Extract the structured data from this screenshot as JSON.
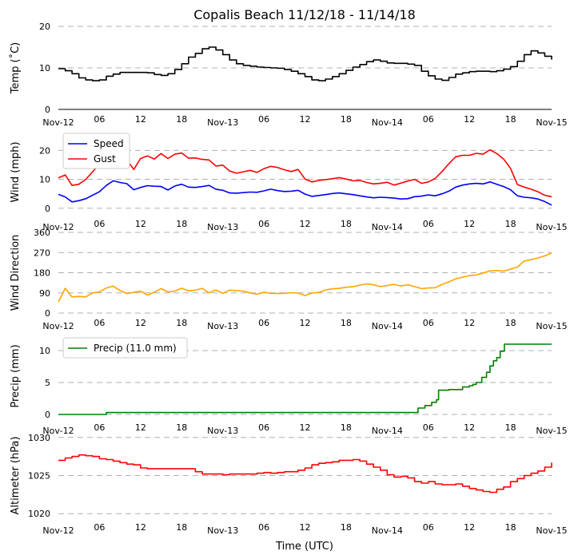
{
  "chart_data": {
    "type": "line",
    "title": "Copalis Beach 11/12/18 - 11/14/18",
    "xlabel": "Time (UTC)",
    "x_range_hours": [
      0,
      72
    ],
    "x_ticks": [
      {
        "h": 0,
        "label": "Nov-12"
      },
      {
        "h": 6,
        "label": "06"
      },
      {
        "h": 12,
        "label": "12"
      },
      {
        "h": 18,
        "label": "18"
      },
      {
        "h": 24,
        "label": "Nov-13"
      },
      {
        "h": 30,
        "label": "06"
      },
      {
        "h": 36,
        "label": "12"
      },
      {
        "h": 42,
        "label": "18"
      },
      {
        "h": 48,
        "label": "Nov-14"
      },
      {
        "h": 54,
        "label": "06"
      },
      {
        "h": 60,
        "label": "12"
      },
      {
        "h": 66,
        "label": "18"
      },
      {
        "h": 72,
        "label": "Nov-15"
      }
    ],
    "panels": [
      {
        "id": "temp",
        "ylabel": "Temp ($^\\circ$C)",
        "ylabel_display": "Temp (˚C)",
        "ylim": [
          0,
          20
        ],
        "yticks": [
          0,
          10,
          20
        ],
        "series": [
          {
            "name": "Temp",
            "color": "#000000",
            "step": true,
            "x": [
              0,
              1,
              2,
              3,
              4,
              5,
              6,
              7,
              8,
              9,
              10,
              11,
              12,
              13,
              14,
              15,
              16,
              17,
              18,
              19,
              20,
              21,
              22,
              23,
              24,
              25,
              26,
              27,
              28,
              29,
              30,
              31,
              32,
              33,
              34,
              35,
              36,
              37,
              38,
              39,
              40,
              41,
              42,
              43,
              44,
              45,
              46,
              47,
              48,
              49,
              50,
              51,
              52,
              53,
              54,
              55,
              56,
              57,
              58,
              59,
              60,
              61,
              62,
              63,
              64,
              65,
              66,
              67,
              68,
              69,
              70,
              71,
              72
            ],
            "y": [
              9.8,
              9.3,
              8.6,
              7.6,
              7.1,
              6.9,
              7.1,
              8.0,
              8.5,
              8.9,
              8.9,
              8.9,
              8.9,
              8.8,
              8.4,
              8.2,
              8.6,
              9.6,
              11.0,
              12.6,
              13.5,
              14.6,
              15.0,
              14.3,
              13.2,
              11.9,
              11.0,
              10.6,
              10.4,
              10.2,
              10.1,
              10.0,
              9.9,
              9.6,
              9.2,
              8.6,
              7.9,
              7.1,
              6.9,
              7.3,
              7.9,
              8.6,
              9.4,
              10.2,
              10.8,
              11.5,
              11.9,
              11.6,
              11.2,
              11.1,
              11.1,
              10.9,
              10.6,
              9.2,
              8.1,
              7.3,
              7.0,
              7.7,
              8.5,
              8.8,
              9.1,
              9.2,
              9.2,
              9.1,
              9.3,
              9.7,
              10.3,
              11.6,
              13.2,
              14.1,
              13.6,
              12.8,
              12.0
            ]
          }
        ]
      },
      {
        "id": "wind",
        "ylabel": "Wind (mph)",
        "ylim": [
          -2,
          27
        ],
        "yticks": [
          0,
          10,
          20
        ],
        "legend": "top-left",
        "series": [
          {
            "name": "Speed",
            "color": "#0000ff",
            "x": [
              0,
              1,
              2,
              3,
              4,
              5,
              6,
              7,
              8,
              9,
              10,
              11,
              12,
              13,
              14,
              15,
              16,
              17,
              18,
              19,
              20,
              21,
              22,
              23,
              24,
              25,
              26,
              27,
              28,
              29,
              30,
              31,
              32,
              33,
              34,
              35,
              36,
              37,
              38,
              39,
              40,
              41,
              42,
              43,
              44,
              45,
              46,
              47,
              48,
              49,
              50,
              51,
              52,
              53,
              54,
              55,
              56,
              57,
              58,
              59,
              60,
              61,
              62,
              63,
              64,
              65,
              66,
              67,
              68,
              69,
              70,
              71,
              72
            ],
            "y": [
              4.8,
              3.9,
              2.2,
              2.6,
              3.3,
              4.5,
              5.7,
              7.9,
              9.5,
              8.9,
              8.5,
              6.4,
              7.2,
              7.8,
              7.6,
              7.5,
              6.3,
              7.7,
              8.3,
              7.3,
              7.2,
              7.5,
              7.9,
              6.6,
              6.2,
              5.3,
              5.2,
              5.4,
              5.6,
              5.5,
              6.0,
              6.6,
              6.1,
              5.8,
              5.9,
              6.2,
              4.9,
              4.1,
              4.4,
              4.7,
              5.1,
              5.3,
              5.0,
              4.7,
              4.3,
              3.9,
              3.6,
              3.8,
              3.7,
              3.5,
              3.2,
              3.3,
              4.0,
              4.2,
              4.6,
              4.3,
              5.0,
              5.9,
              7.3,
              8.0,
              8.4,
              8.6,
              8.4,
              9.1,
              8.3,
              7.5,
              6.4,
              4.3,
              3.8,
              3.6,
              3.2,
              2.3,
              1.1
            ]
          },
          {
            "name": "Gust",
            "color": "#ff0000",
            "x": [
              0,
              1,
              2,
              3,
              4,
              5,
              6,
              7,
              8,
              9,
              10,
              11,
              12,
              13,
              14,
              15,
              16,
              17,
              18,
              19,
              20,
              21,
              22,
              23,
              24,
              25,
              26,
              27,
              28,
              29,
              30,
              31,
              32,
              33,
              34,
              35,
              36,
              37,
              38,
              39,
              40,
              41,
              42,
              43,
              44,
              45,
              46,
              47,
              48,
              49,
              50,
              51,
              52,
              53,
              54,
              55,
              56,
              57,
              58,
              59,
              60,
              61,
              62,
              63,
              64,
              65,
              66,
              67,
              68,
              69,
              70,
              71,
              72
            ],
            "y": [
              10.5,
              11.5,
              7.9,
              8.3,
              10.0,
              12.6,
              15.2,
              17.9,
              20.4,
              18.7,
              16.7,
              13.4,
              17.2,
              18.1,
              17.0,
              18.9,
              17.2,
              18.7,
              19.1,
              17.3,
              17.4,
              16.9,
              16.7,
              14.6,
              14.9,
              12.9,
              12.1,
              12.6,
              13.1,
              12.4,
              13.7,
              14.5,
              14.1,
              13.3,
              12.7,
              13.4,
              10.1,
              9.1,
              9.6,
              9.9,
              10.2,
              10.6,
              10.1,
              9.5,
              9.6,
              8.9,
              8.4,
              8.6,
              9.0,
              8.0,
              8.7,
              9.4,
              10.0,
              8.6,
              9.1,
              10.3,
              12.7,
              15.4,
              17.8,
              18.3,
              18.3,
              19.0,
              18.7,
              20.2,
              18.9,
              17.0,
              13.8,
              8.2,
              7.3,
              6.6,
              5.7,
              4.5,
              4.0
            ]
          }
        ]
      },
      {
        "id": "dir",
        "ylabel": "Wind Direction",
        "ylim": [
          0,
          360
        ],
        "yticks": [
          0,
          90,
          180,
          270,
          360
        ],
        "series": [
          {
            "name": "Direction",
            "color": "#ffa500",
            "x": [
              0,
              1,
              2,
              3,
              4,
              5,
              6,
              7,
              8,
              9,
              10,
              11,
              12,
              13,
              14,
              15,
              16,
              17,
              18,
              19,
              20,
              21,
              22,
              23,
              24,
              25,
              26,
              27,
              28,
              29,
              30,
              31,
              32,
              33,
              34,
              35,
              36,
              37,
              38,
              39,
              40,
              41,
              42,
              43,
              44,
              45,
              46,
              47,
              48,
              49,
              50,
              51,
              52,
              53,
              54,
              55,
              56,
              57,
              58,
              59,
              60,
              61,
              62,
              63,
              64,
              65,
              66,
              67,
              68,
              69,
              70,
              71,
              72
            ],
            "y": [
              50,
              110,
              72,
              74,
              72,
              90,
              94,
              112,
              120,
              100,
              87,
              92,
              98,
              80,
              93,
              109,
              94,
              98,
              111,
              99,
              102,
              110,
              90,
              103,
              88,
              102,
              100,
              98,
              90,
              84,
              93,
              88,
              87,
              88,
              91,
              89,
              78,
              89,
              92,
              103,
              108,
              110,
              115,
              118,
              124,
              130,
              126,
              118,
              123,
              128,
              121,
              126,
              118,
              109,
              112,
              113,
              128,
              139,
              153,
              160,
              167,
              170,
              179,
              188,
              190,
              187,
              196,
              205,
              232,
              238,
              246,
              255,
              268
            ]
          }
        ]
      },
      {
        "id": "precip",
        "ylabel": "Precip (mm)",
        "ylim": [
          -0.5,
          12.5
        ],
        "yticks": [
          0,
          5,
          10
        ],
        "legend": "top-left",
        "series": [
          {
            "name": "Precip (11.0 mm)",
            "color": "#008000",
            "step": true,
            "x": [
              0,
              6.8,
              7,
              51.5,
              52.5,
              53.5,
              54.5,
              55.2,
              55.5,
              56.5,
              57,
              58,
              59,
              60,
              60.5,
              61,
              61.8,
              62.5,
              63,
              63.5,
              64,
              64.5,
              65.1,
              66,
              72
            ],
            "y": [
              0,
              0,
              0.3,
              0.3,
              1.0,
              1.4,
              1.9,
              2.3,
              3.8,
              3.8,
              3.9,
              3.9,
              4.3,
              4.5,
              4.7,
              5.0,
              5.8,
              6.6,
              7.6,
              8.4,
              8.9,
              9.9,
              11.0,
              11.0,
              11.0
            ]
          }
        ]
      },
      {
        "id": "alt",
        "ylabel": "Altimeter (hPa)",
        "ylim": [
          1019.5,
          1030.5
        ],
        "yticks": [
          1020,
          1025,
          1030
        ],
        "series": [
          {
            "name": "Altimeter",
            "color": "#ff0000",
            "step": true,
            "x": [
              0,
              1,
              2,
              3,
              4,
              5,
              6,
              7,
              8,
              9,
              10,
              11,
              12,
              13,
              14,
              15,
              16,
              17,
              18,
              19,
              20,
              21,
              22,
              23,
              24,
              25,
              26,
              27,
              28,
              29,
              30,
              31,
              32,
              33,
              34,
              35,
              36,
              37,
              38,
              39,
              40,
              41,
              42,
              43,
              44,
              45,
              46,
              47,
              48,
              49,
              50,
              51,
              52,
              53,
              54,
              55,
              56,
              57,
              58,
              59,
              60,
              61,
              62,
              63,
              64,
              65,
              66,
              67,
              68,
              69,
              70,
              71,
              72
            ],
            "y": [
              1027.0,
              1027.3,
              1027.5,
              1027.7,
              1027.6,
              1027.5,
              1027.2,
              1027.1,
              1026.9,
              1026.7,
              1026.5,
              1026.4,
              1026.0,
              1025.9,
              1025.9,
              1025.9,
              1025.9,
              1025.9,
              1025.9,
              1025.9,
              1025.5,
              1025.2,
              1025.2,
              1025.2,
              1025.1,
              1025.2,
              1025.2,
              1025.2,
              1025.2,
              1025.3,
              1025.4,
              1025.3,
              1025.4,
              1025.5,
              1025.5,
              1025.7,
              1026.0,
              1026.4,
              1026.6,
              1026.7,
              1026.8,
              1027.0,
              1027.0,
              1027.1,
              1026.9,
              1026.5,
              1026.1,
              1025.7,
              1025.1,
              1024.8,
              1024.9,
              1024.7,
              1024.2,
              1024.0,
              1024.2,
              1023.9,
              1023.8,
              1023.8,
              1023.9,
              1023.6,
              1023.3,
              1023.1,
              1022.9,
              1022.8,
              1023.2,
              1023.5,
              1024.2,
              1024.6,
              1025.0,
              1025.3,
              1025.6,
              1026.1,
              1026.7
            ]
          }
        ]
      }
    ]
  }
}
